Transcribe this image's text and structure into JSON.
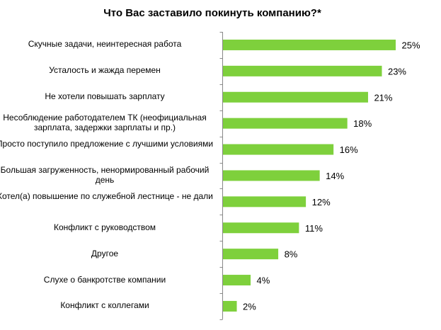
{
  "chart_data": {
    "type": "bar",
    "orientation": "horizontal",
    "title": "Что Вас заставило покинуть компанию?*",
    "xlabel": "",
    "ylabel": "",
    "categories": [
      "Скучные задачи, неинтересная работа",
      "Усталость и жажда перемен",
      "Не хотели повышать зарплату",
      "Несоблюдение работодателем ТК (неофициальная зарплата, задержки зарплаты и пр.)",
      "Просто поступило предложение с лучшими условиями",
      "Большая загруженность, ненормированный рабочий день",
      "Хотел(а) повышение по служебной лестнице - не дали",
      "Конфликт с руководством",
      "Другое",
      "Слухе  о банкротстве компании",
      "Конфликт с коллегами"
    ],
    "values": [
      25,
      23,
      21,
      18,
      16,
      14,
      12,
      11,
      8,
      4,
      2
    ],
    "data_labels": [
      "25%",
      "23%",
      "21%",
      "18%",
      "16%",
      "14%",
      "12%",
      "11%",
      "8%",
      "4%",
      "2%"
    ],
    "xlim": [
      0,
      30
    ],
    "grid": false,
    "legend": "none",
    "bar_color": "#7ed03c"
  }
}
